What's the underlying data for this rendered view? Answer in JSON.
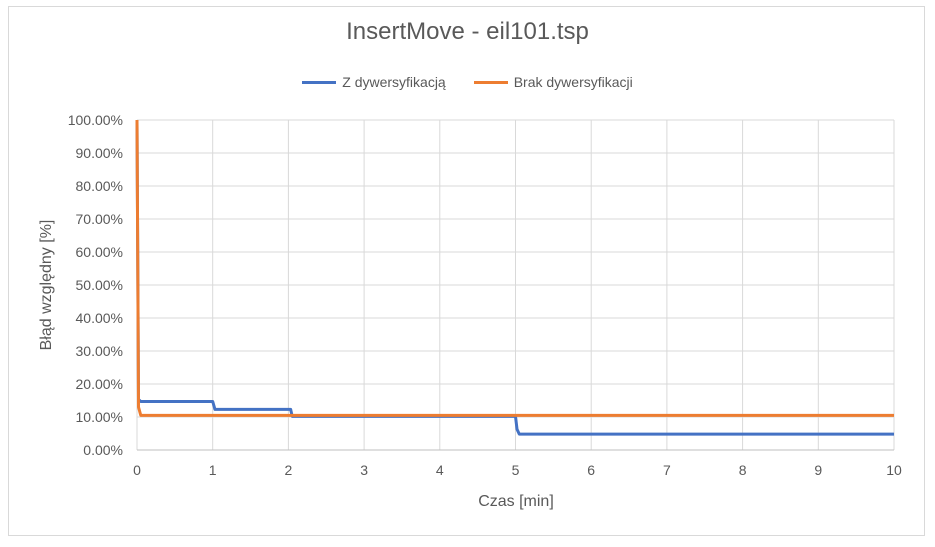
{
  "chart_data": {
    "type": "line",
    "title": "InsertMove - eil101.tsp",
    "xlabel": "Czas [min]",
    "ylabel": "Błąd względny [%]",
    "xlim": [
      0,
      10
    ],
    "ylim": [
      0,
      100
    ],
    "x_ticks": [
      "0",
      "1",
      "2",
      "3",
      "4",
      "5",
      "6",
      "7",
      "8",
      "9",
      "10"
    ],
    "y_ticks": [
      "0.00%",
      "10.00%",
      "20.00%",
      "30.00%",
      "40.00%",
      "50.00%",
      "60.00%",
      "70.00%",
      "80.00%",
      "90.00%",
      "100.00%"
    ],
    "grid": true,
    "legend_position": "top",
    "series": [
      {
        "name": "Z dywersyfikacją",
        "color": "#4472c4",
        "points": [
          [
            0,
            100
          ],
          [
            0.02,
            15.3
          ],
          [
            0.05,
            14.7
          ],
          [
            1.0,
            14.7
          ],
          [
            1.03,
            12.3
          ],
          [
            2.03,
            12.3
          ],
          [
            2.05,
            10.2
          ],
          [
            5.0,
            10.2
          ],
          [
            5.02,
            6.3
          ],
          [
            5.05,
            4.8
          ],
          [
            10,
            4.8
          ]
        ]
      },
      {
        "name": "Brak dywersyfikacji",
        "color": "#ed7d31",
        "points": [
          [
            0,
            100
          ],
          [
            0.02,
            13.0
          ],
          [
            0.05,
            10.5
          ],
          [
            10,
            10.5
          ]
        ]
      }
    ]
  }
}
